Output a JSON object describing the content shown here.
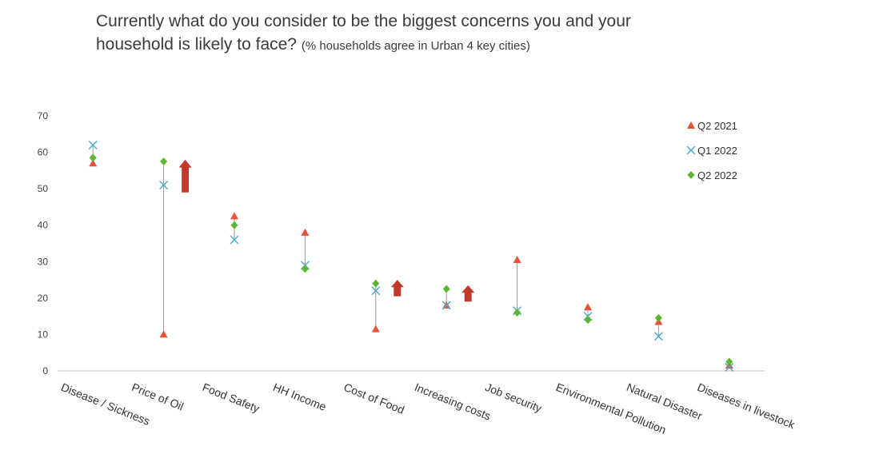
{
  "title": {
    "line1": "Currently what do you consider to be the biggest concerns you and your",
    "line2": "household is likely to face?",
    "subtitle": "(% households agree in Urban 4 key cities)"
  },
  "colors": {
    "q2_2021": "#e8513a",
    "q1_2022": "#4aa9c9",
    "q2_2022": "#5bb82e",
    "arrow": "#c0392b",
    "connector": "#9a9a9a",
    "axis": "#bfbfbf"
  },
  "chart_data": {
    "type": "scatter",
    "title": "Currently what do you consider to be the biggest concerns you and your household is likely to face?",
    "subtitle": "(% households agree in Urban 4 key cities)",
    "xlabel": "",
    "ylabel": "",
    "ylim": [
      0,
      70
    ],
    "yticks": [
      0,
      10,
      20,
      30,
      40,
      50,
      60,
      70
    ],
    "grid": false,
    "legend_position": "top-right",
    "categories": [
      "Disease / Sickness",
      "Price of Oil",
      "Food Safety",
      "HH Income",
      "Cost of Food",
      "Increasing costs",
      "Job security",
      "Environmental Pollution",
      "Natural Disaster",
      "Diseases in livestock"
    ],
    "series": [
      {
        "name": "Q2 2021",
        "marker": "triangle",
        "values": [
          57,
          10,
          42.5,
          38,
          11.5,
          18,
          30.5,
          17.5,
          13.5,
          1.5
        ]
      },
      {
        "name": "Q1 2022",
        "marker": "x",
        "values": [
          62,
          51,
          36,
          29,
          22,
          18,
          16.5,
          15,
          9.5,
          1
        ]
      },
      {
        "name": "Q2 2022",
        "marker": "diamond",
        "values": [
          58.5,
          57.5,
          40,
          28,
          24,
          22.5,
          16,
          14,
          14.5,
          2.5
        ]
      }
    ],
    "arrows": [
      {
        "category": "Price of Oil",
        "direction": "up",
        "from": 49,
        "to": 58
      },
      {
        "category": "Cost of Food",
        "direction": "up",
        "from": 20.5,
        "to": 25
      },
      {
        "category": "Increasing costs",
        "direction": "up",
        "from": 19,
        "to": 23.5
      }
    ]
  }
}
